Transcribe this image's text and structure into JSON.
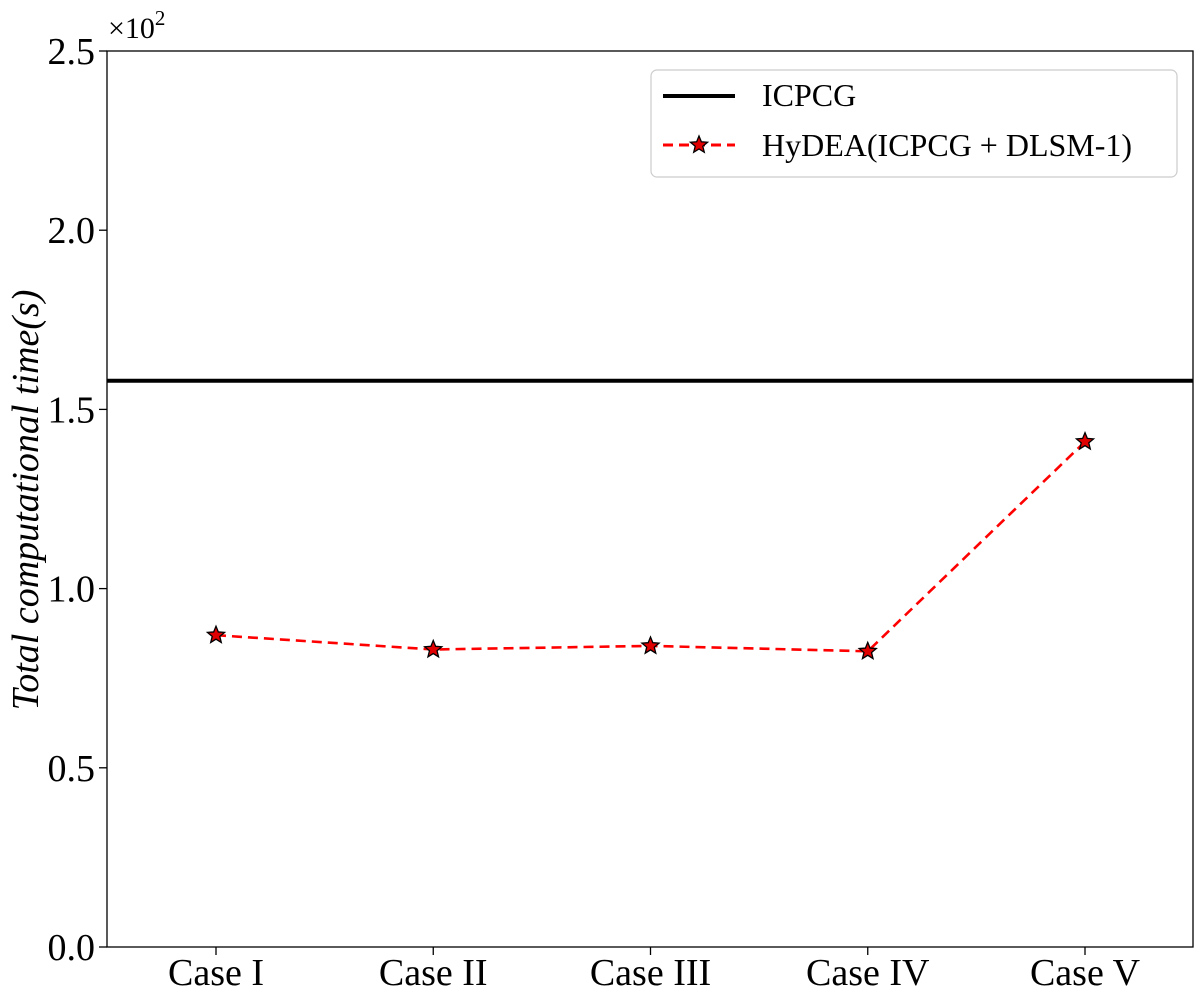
{
  "chart_data": {
    "type": "line",
    "title": "",
    "xlabel": "",
    "ylabel": "Total computational time(s)",
    "y_offset_label": "×10",
    "y_offset_exponent": "2",
    "categories": [
      "Case I",
      "Case II",
      "Case III",
      "Case IV",
      "Case V"
    ],
    "ylim": [
      0.0,
      2.5
    ],
    "yticks": [
      "0.0",
      "0.5",
      "1.0",
      "1.5",
      "2.0",
      "2.5"
    ],
    "grid": false,
    "legend_position": "top-right",
    "reference_line": {
      "name": "ICPCG",
      "value": 1.58,
      "color": "#000000",
      "style": "solid"
    },
    "series": [
      {
        "name": "HyDEA(ICPCG + DLSM-1)",
        "values": [
          0.87,
          0.83,
          0.84,
          0.825,
          1.41
        ],
        "color": "#ff0000",
        "marker": "star",
        "marker_color": "#e00000",
        "style": "dashed"
      }
    ]
  }
}
